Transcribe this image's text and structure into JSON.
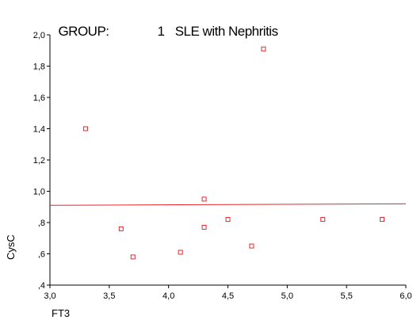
{
  "title": {
    "label": "GROUP:",
    "number": "1",
    "text": "SLE with Nephritis"
  },
  "chart_data": {
    "type": "scatter",
    "title": "GROUP:    1  SLE with Nephritis",
    "xlabel": "FT3",
    "ylabel": "CysC",
    "xlim": [
      3.0,
      6.0
    ],
    "ylim": [
      0.4,
      2.0
    ],
    "x_ticks": [
      3.0,
      3.5,
      4.0,
      4.5,
      5.0,
      5.5,
      6.0
    ],
    "x_tick_labels": [
      "3,0",
      "3,5",
      "4,0",
      "4,5",
      "5,0",
      "5,5",
      "6,0"
    ],
    "y_ticks": [
      0.4,
      0.6,
      0.8,
      1.0,
      1.2,
      1.4,
      1.6,
      1.8,
      2.0
    ],
    "y_tick_labels": [
      ",4",
      ",6",
      ",8",
      "1,0",
      "1,2",
      "1,4",
      "1,6",
      "1,8",
      "2,0"
    ],
    "points": [
      {
        "x": 3.3,
        "y": 1.4
      },
      {
        "x": 3.6,
        "y": 0.76
      },
      {
        "x": 3.7,
        "y": 0.58
      },
      {
        "x": 4.1,
        "y": 0.61
      },
      {
        "x": 4.3,
        "y": 0.95
      },
      {
        "x": 4.3,
        "y": 0.77
      },
      {
        "x": 4.5,
        "y": 0.82
      },
      {
        "x": 4.7,
        "y": 0.65
      },
      {
        "x": 4.8,
        "y": 1.91
      },
      {
        "x": 5.3,
        "y": 0.82
      },
      {
        "x": 5.8,
        "y": 0.82
      }
    ],
    "fit_line": {
      "x": [
        3.0,
        6.0
      ],
      "y": [
        0.91,
        0.92
      ]
    },
    "grid": false,
    "colors": {
      "points": "#e8262a",
      "fit_line": "#e8262a",
      "axis": "#000000"
    }
  }
}
